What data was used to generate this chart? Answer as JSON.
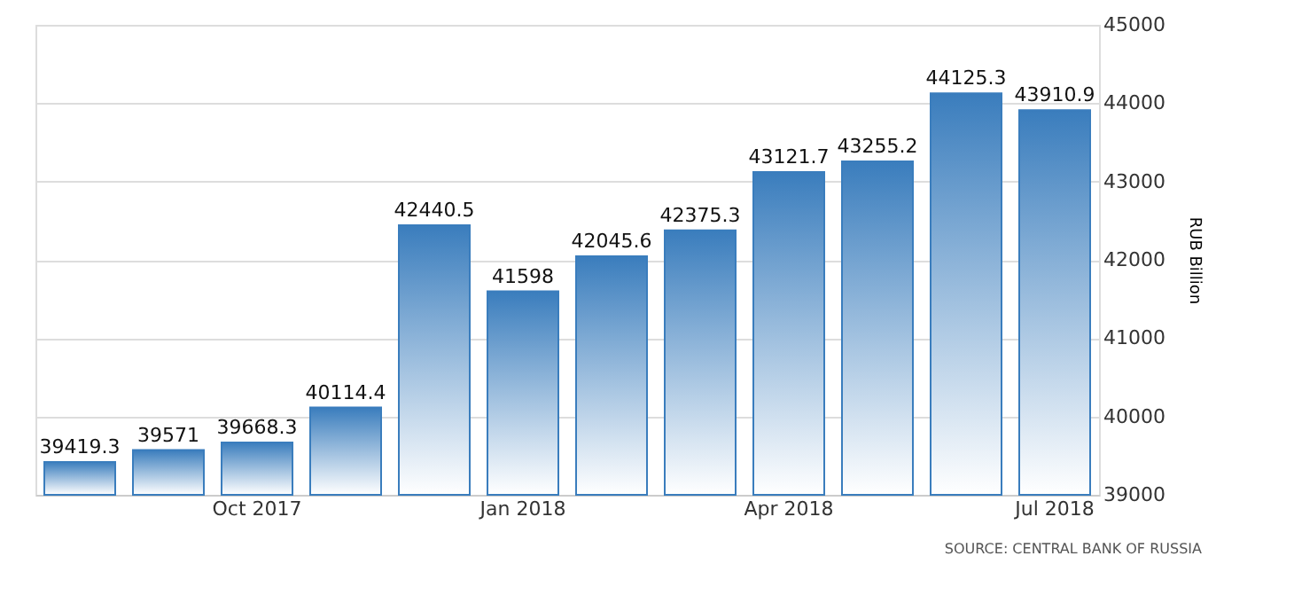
{
  "chart_data": {
    "type": "bar",
    "categories": [
      null,
      null,
      "Oct 2017",
      null,
      null,
      "Jan 2018",
      null,
      null,
      "Apr 2018",
      null,
      null,
      "Jul 2018"
    ],
    "values": [
      39419.3,
      39571,
      39668.3,
      40114.4,
      42440.5,
      41598,
      42045.6,
      42375.3,
      43121.7,
      43255.2,
      44125.3,
      43910.9
    ],
    "color": "#3a7dbd",
    "ylim": [
      39000,
      45000
    ],
    "yticks": [
      39000,
      40000,
      41000,
      42000,
      43000,
      44000,
      45000
    ],
    "ylabel": "RUB Billion",
    "grid": "y",
    "data_labels": true,
    "annotations": [
      "SOURCE: CENTRAL BANK OF RUSSIA"
    ]
  }
}
